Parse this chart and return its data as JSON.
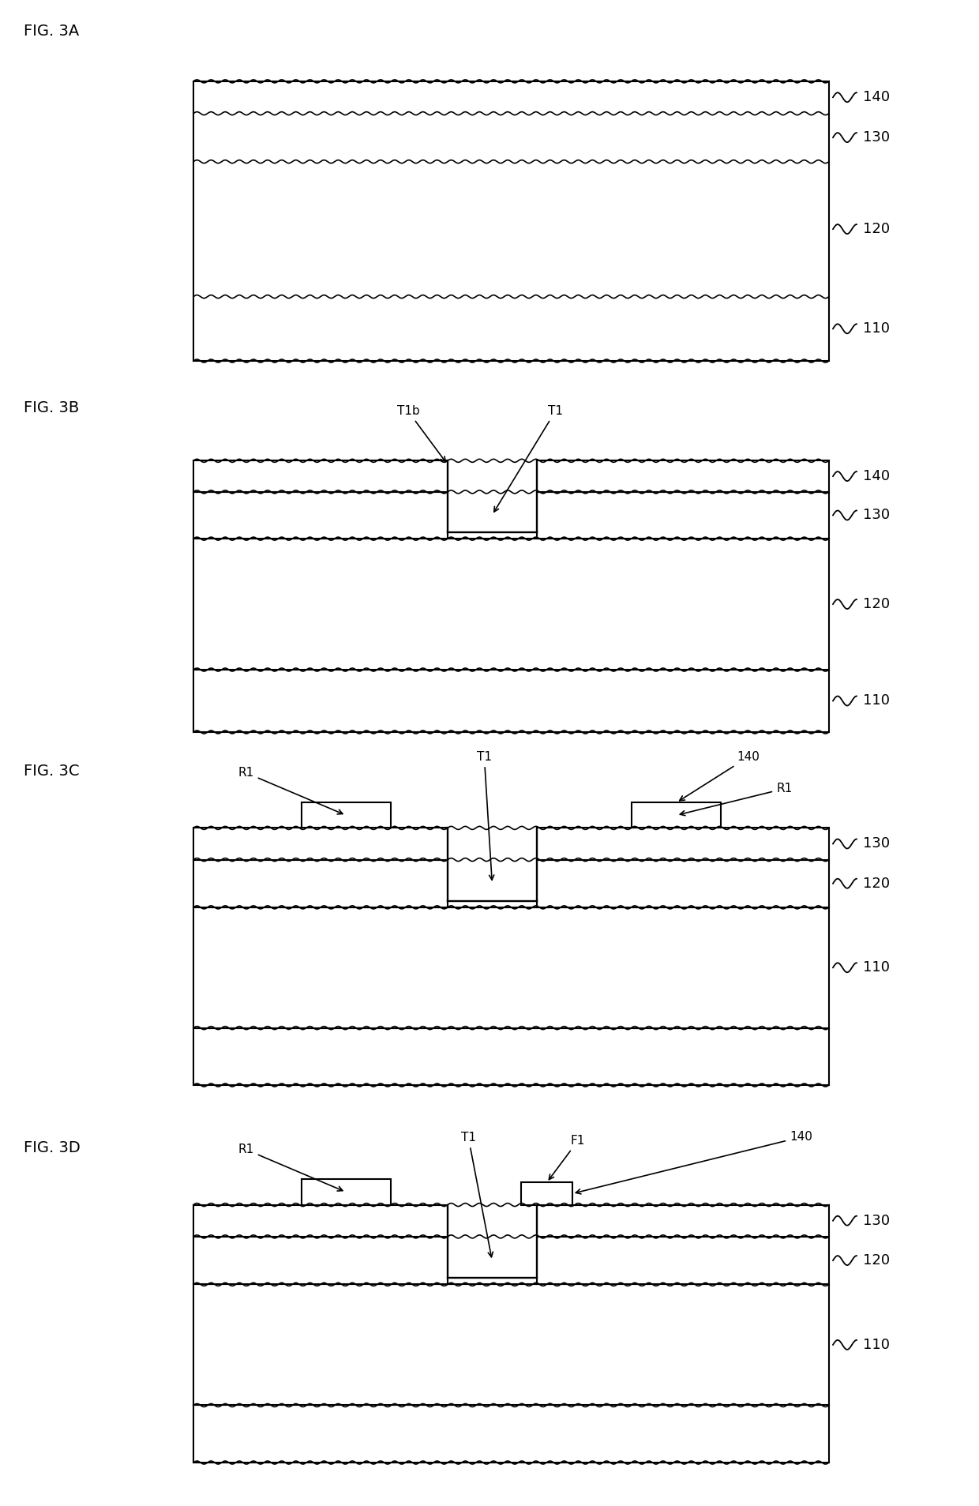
{
  "fig_size": [
    12.4,
    19.07
  ],
  "bg_color": "#ffffff",
  "lc": "#000000",
  "lw": 1.5,
  "diagrams": [
    {
      "label": "FIG. 3A"
    },
    {
      "label": "FIG. 3B"
    },
    {
      "label": "FIG. 3C"
    },
    {
      "label": "FIG. 3D"
    }
  ],
  "layer_nums": [
    "140",
    "130",
    "120",
    "110"
  ]
}
